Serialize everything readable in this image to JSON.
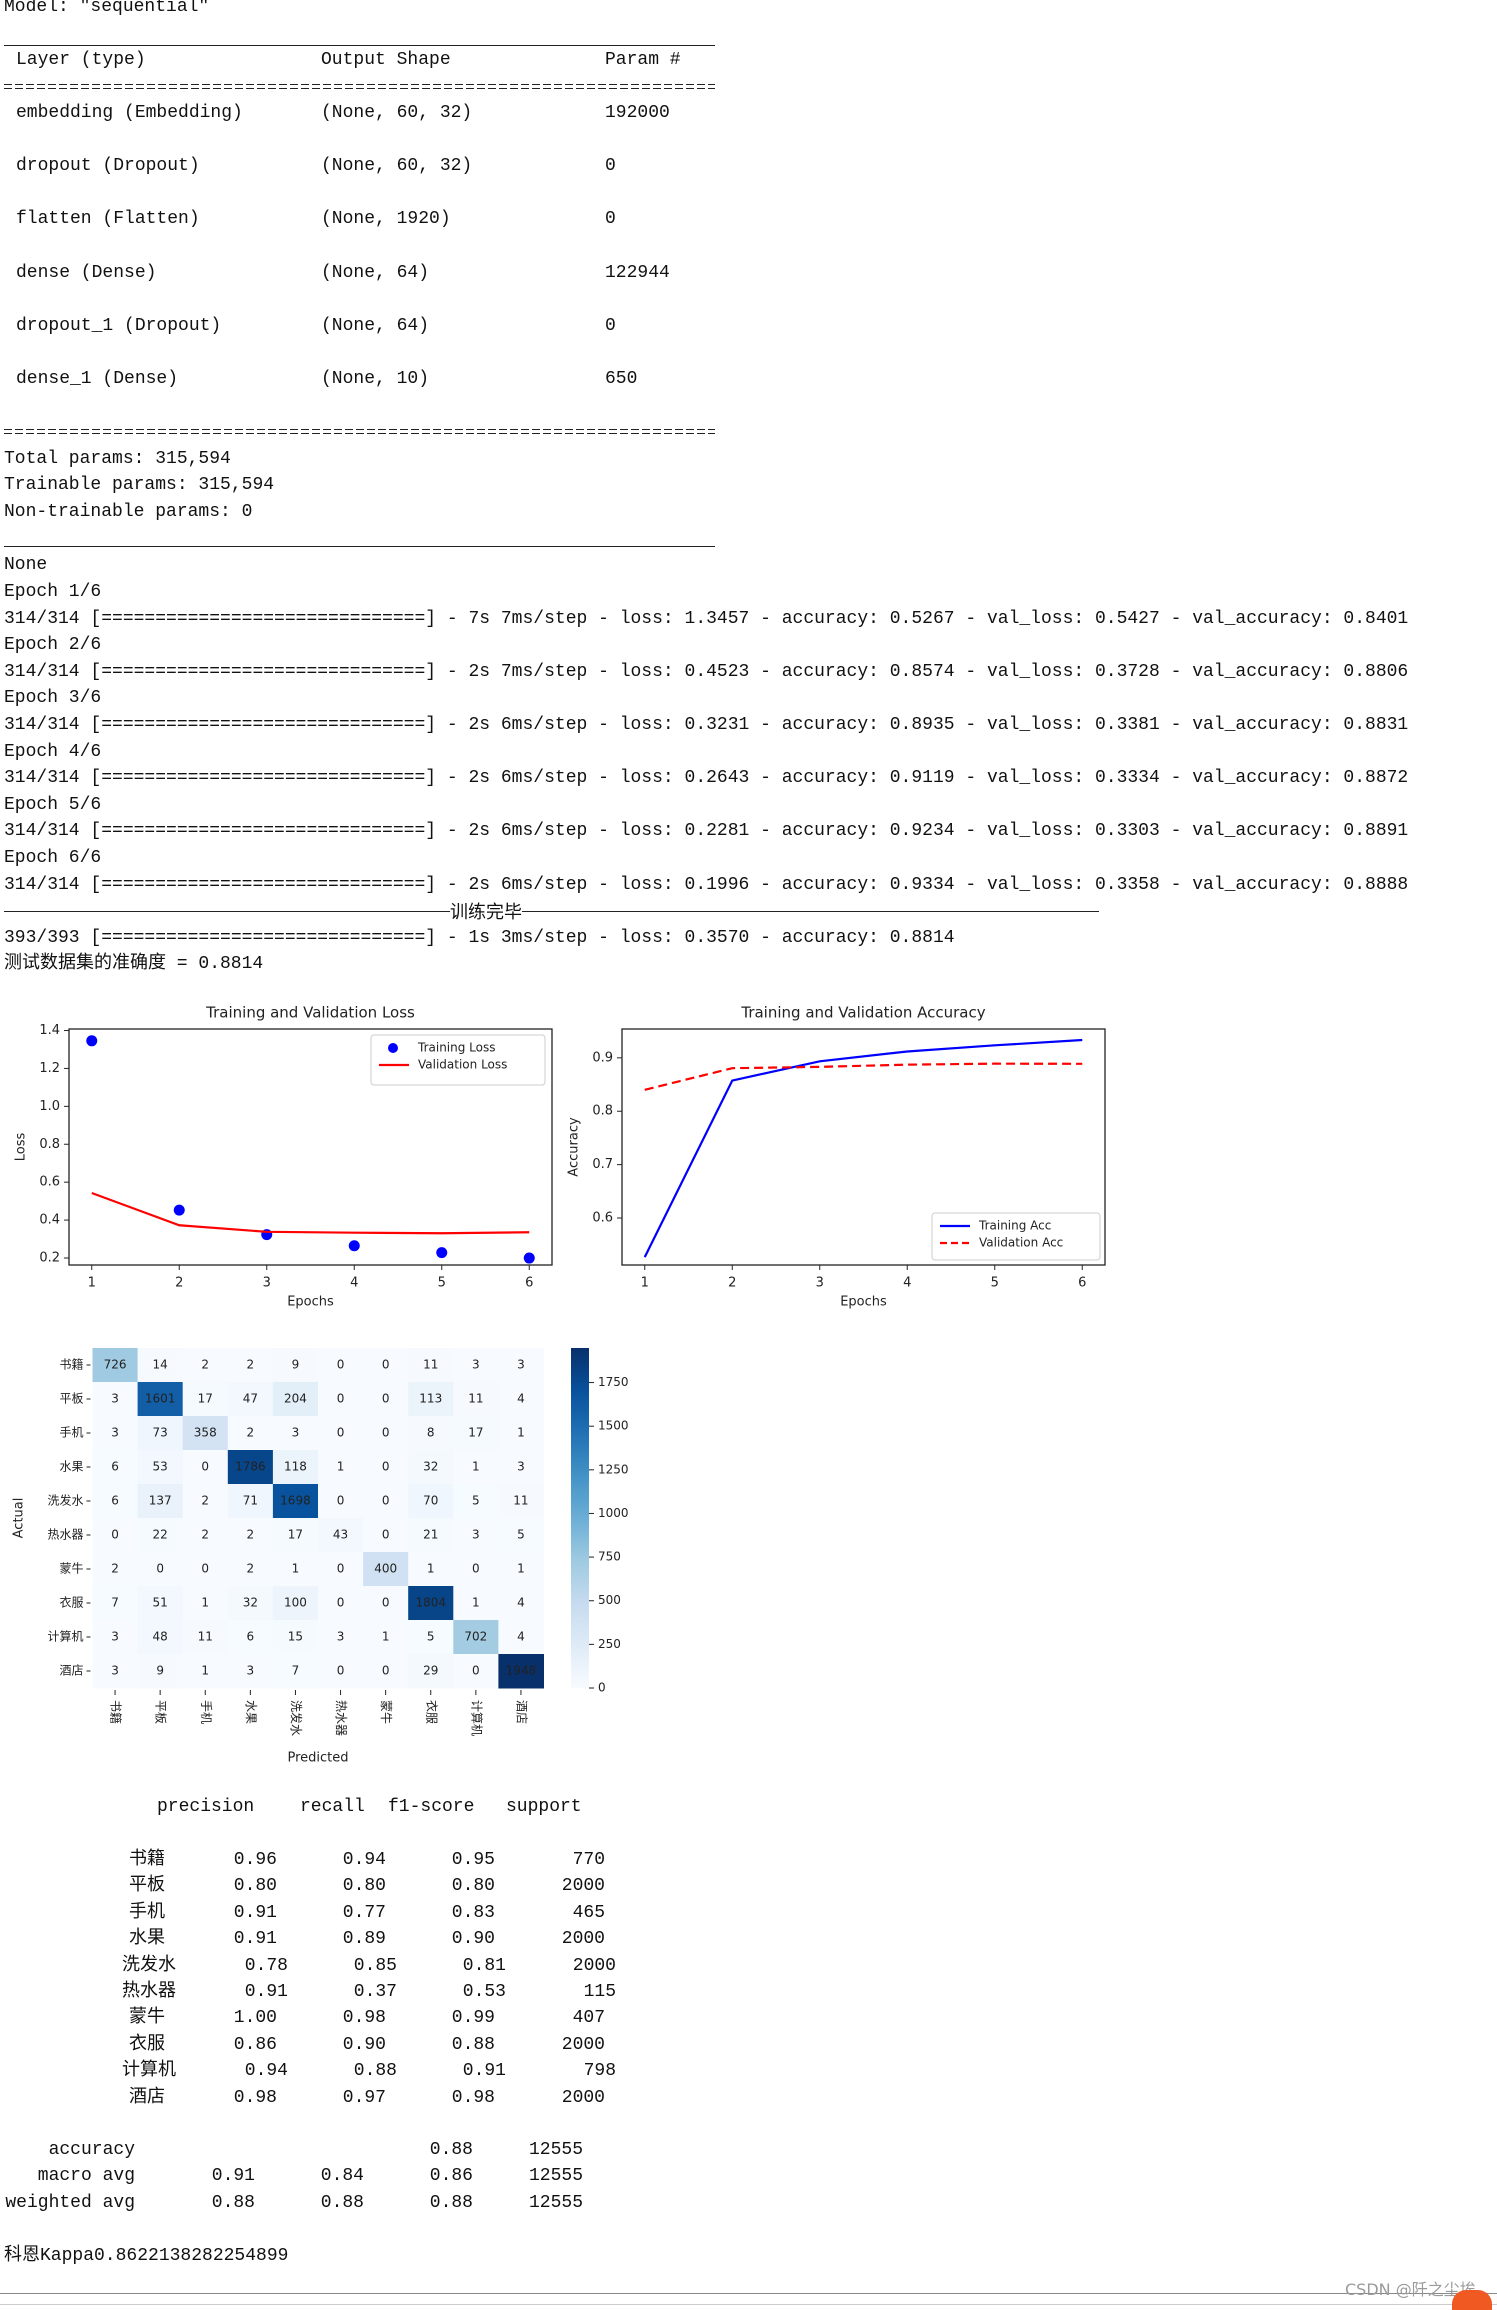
{
  "summary": {
    "model_line": "Model: \"sequential\"",
    "headers": [
      "Layer (type)",
      "Output Shape",
      "Param #"
    ],
    "layers": [
      {
        "name": "embedding (Embedding)",
        "shape": "(None, 60, 32)",
        "params": "192000"
      },
      {
        "name": "dropout (Dropout)",
        "shape": "(None, 60, 32)",
        "params": "0"
      },
      {
        "name": "flatten (Flatten)",
        "shape": "(None, 1920)",
        "params": "0"
      },
      {
        "name": "dense (Dense)",
        "shape": "(None, 64)",
        "params": "122944"
      },
      {
        "name": "dropout_1 (Dropout)",
        "shape": "(None, 64)",
        "params": "0"
      },
      {
        "name": "dense_1 (Dense)",
        "shape": "(None, 10)",
        "params": "650"
      }
    ],
    "total_params": "Total params: 315,594",
    "trainable_params": "Trainable params: 315,594",
    "non_trainable_params": "Non-trainable params: 0",
    "none_line": "None"
  },
  "training": {
    "epochs": [
      {
        "label": "Epoch 1/6",
        "log": "314/314 [==============================] - 7s 7ms/step - loss: 1.3457 - accuracy: 0.5267 - val_loss: 0.5427 - val_accuracy: 0.8401"
      },
      {
        "label": "Epoch 2/6",
        "log": "314/314 [==============================] - 2s 7ms/step - loss: 0.4523 - accuracy: 0.8574 - val_loss: 0.3728 - val_accuracy: 0.8806"
      },
      {
        "label": "Epoch 3/6",
        "log": "314/314 [==============================] - 2s 6ms/step - loss: 0.3231 - accuracy: 0.8935 - val_loss: 0.3381 - val_accuracy: 0.8831"
      },
      {
        "label": "Epoch 4/6",
        "log": "314/314 [==============================] - 2s 6ms/step - loss: 0.2643 - accuracy: 0.9119 - val_loss: 0.3334 - val_accuracy: 0.8872"
      },
      {
        "label": "Epoch 5/6",
        "log": "314/314 [==============================] - 2s 6ms/step - loss: 0.2281 - accuracy: 0.9234 - val_loss: 0.3303 - val_accuracy: 0.8891"
      },
      {
        "label": "Epoch 6/6",
        "log": "314/314 [==============================] - 2s 6ms/step - loss: 0.1996 - accuracy: 0.9334 - val_loss: 0.3358 - val_accuracy: 0.8888"
      }
    ],
    "done_label": "训练完毕",
    "eval_log": "393/393 [==============================] - 1s 3ms/step - loss: 0.3570 - accuracy: 0.8814",
    "test_accuracy": "测试数据集的准确度 = 0.8814"
  },
  "chart_data": [
    {
      "type": "line",
      "title": "Training and Validation Loss",
      "xlabel": "Epochs",
      "ylabel": "Loss",
      "x": [
        1,
        2,
        3,
        4,
        5,
        6
      ],
      "xticks": [
        1,
        2,
        3,
        4,
        5,
        6
      ],
      "yticks": [
        0.2,
        0.4,
        0.6,
        0.8,
        1.0,
        1.2,
        1.4
      ],
      "ytick_labels": [
        "0.2",
        "0.4",
        "0.6",
        "0.8",
        "1.0",
        "1.2",
        "1.4"
      ],
      "xlim": [
        0.74,
        6.26
      ],
      "ylim": [
        0.163,
        1.408
      ],
      "legend": "upper right",
      "grid": false,
      "series": [
        {
          "name": "Training Loss",
          "values": [
            1.3457,
            0.4523,
            0.3231,
            0.2643,
            0.2281,
            0.1996
          ],
          "color": "#0000ff",
          "style": "markers"
        },
        {
          "name": "Validation Loss",
          "values": [
            0.5427,
            0.3728,
            0.3381,
            0.3334,
            0.3303,
            0.3358
          ],
          "color": "#ff0000",
          "style": "solid"
        }
      ]
    },
    {
      "type": "line",
      "title": "Training and Validation Accuracy",
      "xlabel": "Epochs",
      "ylabel": "Accuracy",
      "x": [
        1,
        2,
        3,
        4,
        5,
        6
      ],
      "xticks": [
        1,
        2,
        3,
        4,
        5,
        6
      ],
      "yticks": [
        0.6,
        0.7,
        0.8,
        0.9
      ],
      "ytick_labels": [
        "0.6",
        "0.7",
        "0.8",
        "0.9"
      ],
      "xlim": [
        0.74,
        6.26
      ],
      "ylim": [
        0.512,
        0.954
      ],
      "legend": "lower right",
      "grid": false,
      "series": [
        {
          "name": "Training Acc",
          "values": [
            0.5267,
            0.8574,
            0.8935,
            0.9119,
            0.9234,
            0.9334
          ],
          "color": "#0000ff",
          "style": "solid"
        },
        {
          "name": "Validation Acc",
          "values": [
            0.8401,
            0.8806,
            0.8831,
            0.8872,
            0.8891,
            0.8888
          ],
          "color": "#ff0000",
          "style": "dashed"
        }
      ]
    },
    {
      "type": "heatmap",
      "xlabel": "Predicted",
      "ylabel": "Actual",
      "categories": [
        "书籍",
        "平板",
        "手机",
        "水果",
        "洗发水",
        "热水器",
        "蒙牛",
        "衣服",
        "计算机",
        "酒店"
      ],
      "matrix": [
        [
          726,
          14,
          2,
          2,
          9,
          0,
          0,
          11,
          3,
          3
        ],
        [
          3,
          1601,
          17,
          47,
          204,
          0,
          0,
          113,
          11,
          4
        ],
        [
          3,
          73,
          358,
          2,
          3,
          0,
          0,
          8,
          17,
          1
        ],
        [
          6,
          53,
          0,
          1786,
          118,
          1,
          0,
          32,
          1,
          3
        ],
        [
          6,
          137,
          2,
          71,
          1698,
          0,
          0,
          70,
          5,
          11
        ],
        [
          0,
          22,
          2,
          2,
          17,
          43,
          0,
          21,
          3,
          5
        ],
        [
          2,
          0,
          0,
          2,
          1,
          0,
          400,
          1,
          0,
          1
        ],
        [
          7,
          51,
          1,
          32,
          100,
          0,
          0,
          1804,
          1,
          4
        ],
        [
          3,
          48,
          11,
          6,
          15,
          3,
          1,
          5,
          702,
          4
        ],
        [
          3,
          9,
          1,
          3,
          7,
          0,
          0,
          29,
          0,
          1948
        ]
      ],
      "colormap": "Blues",
      "vmin": 0,
      "vmax": 1948,
      "colorbar_ticks": [
        0,
        250,
        500,
        750,
        1000,
        1250,
        1500,
        1750
      ]
    }
  ],
  "report": {
    "headers": [
      "precision",
      "recall",
      "f1-score",
      "support"
    ],
    "rows": [
      {
        "label": "书籍",
        "precision": "0.96",
        "recall": "0.94",
        "f1": "0.95",
        "support": "770"
      },
      {
        "label": "平板",
        "precision": "0.80",
        "recall": "0.80",
        "f1": "0.80",
        "support": "2000"
      },
      {
        "label": "手机",
        "precision": "0.91",
        "recall": "0.77",
        "f1": "0.83",
        "support": "465"
      },
      {
        "label": "水果",
        "precision": "0.91",
        "recall": "0.89",
        "f1": "0.90",
        "support": "2000"
      },
      {
        "label": "洗发水",
        "precision": "0.78",
        "recall": "0.85",
        "f1": "0.81",
        "support": "2000"
      },
      {
        "label": "热水器",
        "precision": "0.91",
        "recall": "0.37",
        "f1": "0.53",
        "support": "115"
      },
      {
        "label": "蒙牛",
        "precision": "1.00",
        "recall": "0.98",
        "f1": "0.99",
        "support": "407"
      },
      {
        "label": "衣服",
        "precision": "0.86",
        "recall": "0.90",
        "f1": "0.88",
        "support": "2000"
      },
      {
        "label": "计算机",
        "precision": "0.94",
        "recall": "0.88",
        "f1": "0.91",
        "support": "798"
      },
      {
        "label": "酒店",
        "precision": "0.98",
        "recall": "0.97",
        "f1": "0.98",
        "support": "2000"
      }
    ],
    "summary": [
      {
        "label": "accuracy",
        "precision": "",
        "recall": "",
        "f1": "0.88",
        "support": "12555"
      },
      {
        "label": "macro avg",
        "precision": "0.91",
        "recall": "0.84",
        "f1": "0.86",
        "support": "12555"
      },
      {
        "label": "weighted avg",
        "precision": "0.88",
        "recall": "0.88",
        "f1": "0.88",
        "support": "12555"
      }
    ],
    "kappa": "科恩Kappa0.8622138282254899"
  },
  "watermark": "CSDN @阡之尘埃"
}
